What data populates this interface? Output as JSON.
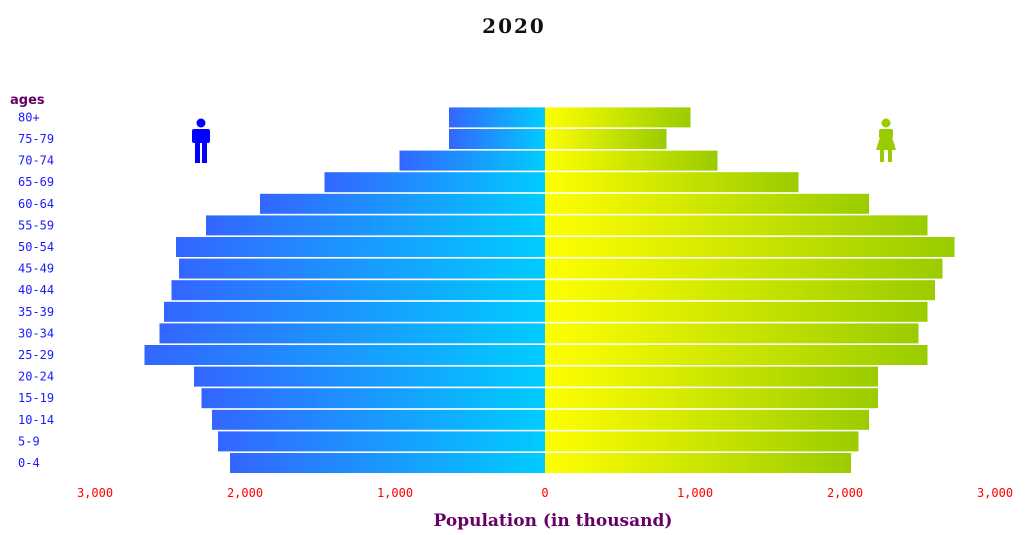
{
  "chart_data": {
    "type": "bar",
    "title": "2020",
    "xlabel": "Population (in thousand)",
    "age_axis_label": "ages",
    "xlim": [
      -3000,
      3000
    ],
    "x_ticks": [
      {
        "value": -3000,
        "label": "3,000"
      },
      {
        "value": -2000,
        "label": "2,000"
      },
      {
        "value": -1000,
        "label": "1,000"
      },
      {
        "value": 0,
        "label": "0"
      },
      {
        "value": 1000,
        "label": "1,000"
      },
      {
        "value": 2000,
        "label": "2,000"
      },
      {
        "value": 3000,
        "label": "3,000"
      }
    ],
    "categories": [
      "0-4",
      "5-9",
      "10-14",
      "15-19",
      "20-24",
      "25-29",
      "30-34",
      "35-39",
      "40-44",
      "45-49",
      "50-54",
      "55-59",
      "60-64",
      "65-69",
      "70-74",
      "75-79",
      "80+"
    ],
    "series": [
      {
        "values": [
          2100,
          2180,
          2220,
          2290,
          2340,
          2670,
          2570,
          2540,
          2490,
          2440,
          2460,
          2260,
          1900,
          1470,
          970,
          640,
          640
        ]
      },
      {
        "values": [
          2040,
          2090,
          2160,
          2220,
          2220,
          2550,
          2490,
          2550,
          2600,
          2650,
          2730,
          2550,
          2160,
          1690,
          1150,
          810,
          970
        ]
      }
    ],
    "colors": {
      "title": "#111111",
      "age_label_color": "#1a1aff",
      "ages_header_color": "#660066",
      "tick_label_color": "#ff0000",
      "xlabel_color": "#660066",
      "male_outer": "#3366ff",
      "male_inner": "#00ccff",
      "female_inner": "#ffff00",
      "female_outer": "#99cc00",
      "male_icon": "#0000ff",
      "female_icon": "#99cc00"
    },
    "icons": {
      "male": "male-person-icon",
      "female": "female-person-icon"
    }
  }
}
